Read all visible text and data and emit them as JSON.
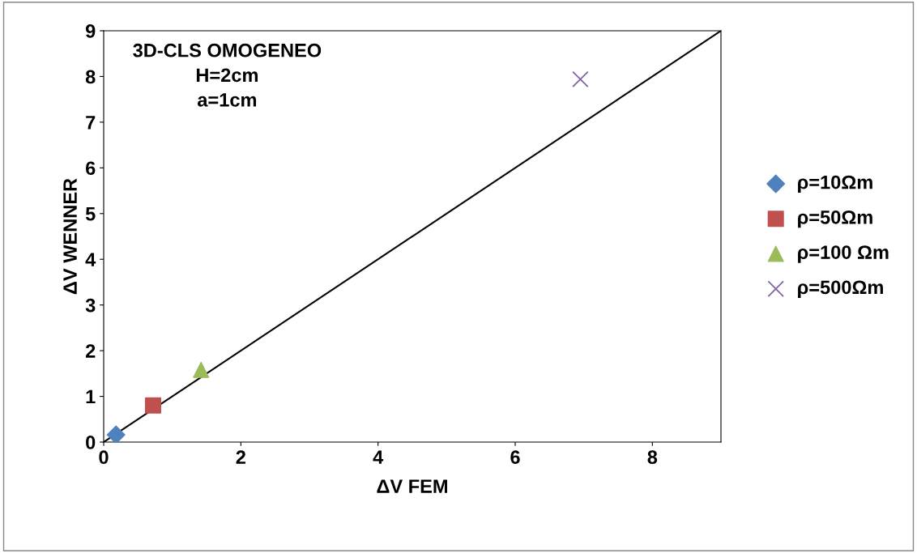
{
  "chart_data": {
    "type": "scatter",
    "title": "3D-CLS OMOGENEO\nH=2cm\na=1cm",
    "xlabel": "ΔV FEM",
    "ylabel": "ΔV WENNER",
    "series": [
      {
        "name": "ρ=10Ωm",
        "color": "#4f81bd",
        "marker": "diamond",
        "x": [
          0.18
        ],
        "values": [
          0.16
        ]
      },
      {
        "name": "ρ=50Ωm",
        "color": "#c0504d",
        "marker": "square",
        "x": [
          0.72
        ],
        "values": [
          0.8
        ]
      },
      {
        "name": "ρ=100 Ωm",
        "color": "#9bbb59",
        "marker": "triangle",
        "x": [
          1.42
        ],
        "values": [
          1.58
        ]
      },
      {
        "name": "ρ=500Ωm",
        "color": "#8064a2",
        "marker": "cross",
        "x": [
          6.95
        ],
        "values": [
          7.94
        ]
      },
      {
        "type": "line",
        "color": "#000000",
        "marker": "none",
        "x": [
          0,
          9
        ],
        "values": [
          0,
          9
        ]
      }
    ],
    "xlim": [
      0,
      9
    ],
    "ylim": [
      0,
      9
    ],
    "xticks": [
      0,
      2,
      4,
      6,
      8
    ],
    "yticks": [
      0,
      1,
      2,
      3,
      4,
      5,
      6,
      7,
      8,
      9
    ],
    "grid": false,
    "legend": "right"
  }
}
